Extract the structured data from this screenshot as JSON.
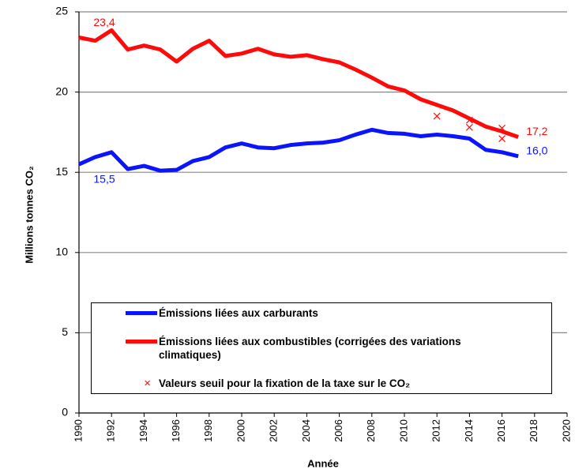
{
  "chart_data": {
    "type": "line",
    "xlabel": "Année",
    "ylabel": "Millions tonnes CO₂",
    "xlim": [
      1990,
      2020
    ],
    "xticks": [
      1990,
      1992,
      1994,
      1996,
      1998,
      2000,
      2002,
      2004,
      2006,
      2008,
      2010,
      2012,
      2014,
      2016,
      2018,
      2020
    ],
    "ylim": [
      0,
      25
    ],
    "yticks": [
      0,
      5,
      10,
      15,
      20,
      25
    ],
    "grid": true,
    "series": [
      {
        "name": "Émissions liées aux carburants",
        "style": "line",
        "color": "#0a14ff",
        "x": [
          1990,
          1991,
          1992,
          1993,
          1994,
          1995,
          1996,
          1997,
          1998,
          1999,
          2000,
          2001,
          2002,
          2003,
          2004,
          2005,
          2006,
          2007,
          2008,
          2009,
          2010,
          2011,
          2012,
          2013,
          2014,
          2015,
          2016,
          2017
        ],
        "values": [
          15.5,
          15.95,
          16.25,
          15.2,
          15.4,
          15.1,
          15.15,
          15.7,
          15.95,
          16.55,
          16.8,
          16.55,
          16.5,
          16.7,
          16.8,
          16.85,
          17.0,
          17.35,
          17.65,
          17.45,
          17.4,
          17.25,
          17.35,
          17.25,
          17.1,
          16.4,
          16.25,
          16.0
        ],
        "value_labels": [
          "15,5",
          null,
          null,
          null,
          null,
          null,
          null,
          null,
          null,
          null,
          null,
          null,
          null,
          null,
          null,
          null,
          null,
          null,
          null,
          null,
          null,
          null,
          null,
          null,
          null,
          null,
          null,
          "16,0"
        ]
      },
      {
        "name": "Émissions liées aux combustibles (corrigées des variations climatiques)",
        "style": "line",
        "color": "#ff0a0a",
        "x": [
          1990,
          1991,
          1992,
          1993,
          1994,
          1995,
          1996,
          1997,
          1998,
          1999,
          2000,
          2001,
          2002,
          2003,
          2004,
          2005,
          2006,
          2007,
          2008,
          2009,
          2010,
          2011,
          2012,
          2013,
          2014,
          2015,
          2016,
          2017
        ],
        "values": [
          23.4,
          23.2,
          23.85,
          22.65,
          22.9,
          22.65,
          21.9,
          22.7,
          23.2,
          22.25,
          22.4,
          22.7,
          22.35,
          22.2,
          22.3,
          22.05,
          21.85,
          21.4,
          20.9,
          20.35,
          20.1,
          19.55,
          19.2,
          18.85,
          18.35,
          17.85,
          17.55,
          17.2
        ],
        "value_labels": [
          "23,4",
          null,
          null,
          null,
          null,
          null,
          null,
          null,
          null,
          null,
          null,
          null,
          null,
          null,
          null,
          null,
          null,
          null,
          null,
          null,
          null,
          null,
          null,
          null,
          null,
          null,
          null,
          "17,2"
        ]
      },
      {
        "name": "Valeurs seuil pour la fixation de la taxe sur le CO₂",
        "style": "marker",
        "color": "#ff0a0a",
        "x": [
          2012,
          2014,
          2014,
          2016,
          2016
        ],
        "values": [
          18.5,
          18.25,
          17.8,
          17.75,
          17.1
        ]
      }
    ]
  }
}
